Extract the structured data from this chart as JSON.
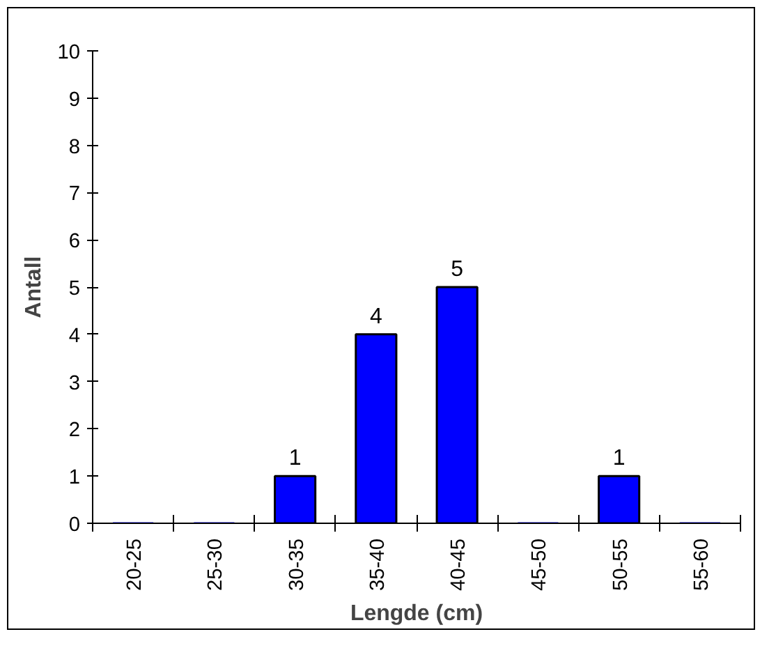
{
  "chart_data": {
    "type": "bar",
    "xlabel": "Lengde (cm)",
    "ylabel": "Antall",
    "categories": [
      "20-25",
      "25-30",
      "30-35",
      "35-40",
      "40-45",
      "45-50",
      "50-55",
      "55-60"
    ],
    "values": [
      0,
      0,
      1,
      4,
      5,
      0,
      1,
      0
    ],
    "value_labels": [
      null,
      null,
      "1",
      "4",
      "5",
      null,
      "1",
      null
    ],
    "color": "#0000ff",
    "ylim": [
      0,
      10
    ],
    "yticks": [
      0,
      1,
      2,
      3,
      4,
      5,
      6,
      7,
      8,
      9,
      10
    ],
    "grid": false
  }
}
